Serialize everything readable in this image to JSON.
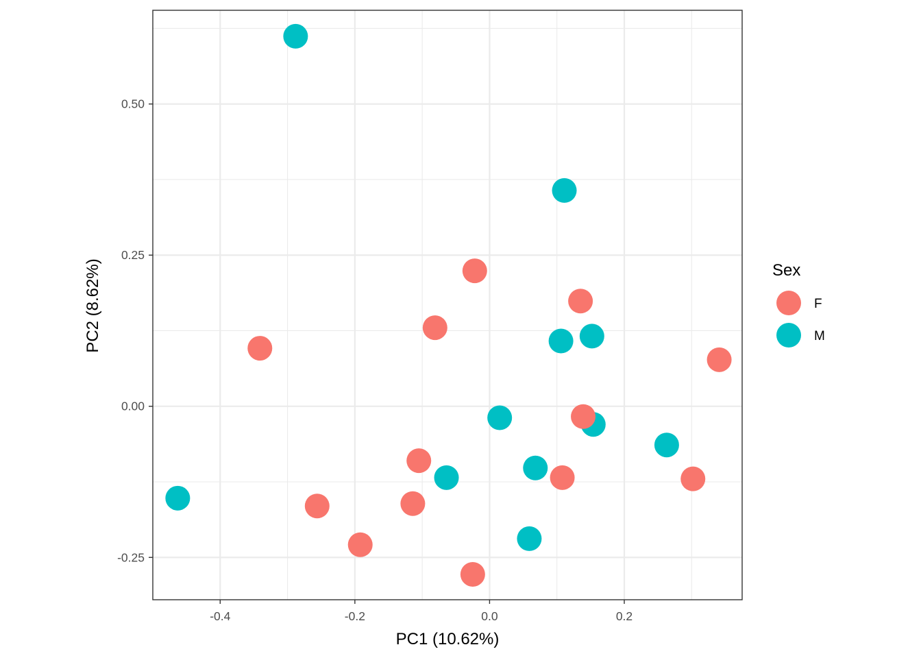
{
  "chart_data": {
    "type": "scatter",
    "xlabel": "PC1 (10.62%)",
    "ylabel": "PC2 (8.62%)",
    "xlim": [
      -0.5,
      0.375
    ],
    "ylim": [
      -0.32,
      0.655
    ],
    "x_ticks": [
      -0.4,
      -0.2,
      0.0,
      0.2
    ],
    "x_tick_labels": [
      "-0.4",
      "-0.2",
      "0.0",
      "0.2"
    ],
    "y_ticks": [
      -0.25,
      0.0,
      0.25,
      0.5
    ],
    "y_tick_labels": [
      "-0.25",
      "0.00",
      "0.25",
      "0.50"
    ],
    "grid": true,
    "legend": {
      "title": "Sex",
      "placement": "right",
      "entries": [
        {
          "label": "F",
          "color": "#F8766D"
        },
        {
          "label": "M",
          "color": "#00BFC4"
        }
      ]
    },
    "series": [
      {
        "name": "M",
        "color": "#00BFC4",
        "x": [
          -0.288,
          0.111,
          0.106,
          0.152,
          0.015,
          0.154,
          0.263,
          -0.064,
          0.068,
          -0.463,
          0.059
        ],
        "y": [
          0.612,
          0.357,
          0.108,
          0.116,
          -0.019,
          -0.03,
          -0.064,
          -0.118,
          -0.102,
          -0.152,
          -0.219
        ]
      },
      {
        "name": "F",
        "color": "#F8766D",
        "x": [
          -0.022,
          0.135,
          -0.081,
          -0.341,
          0.341,
          0.139,
          -0.105,
          0.108,
          0.302,
          -0.114,
          -0.256,
          -0.192,
          -0.025
        ],
        "y": [
          0.224,
          0.174,
          0.13,
          0.096,
          0.077,
          -0.017,
          -0.09,
          -0.118,
          -0.12,
          -0.161,
          -0.165,
          -0.229,
          -0.278
        ]
      }
    ]
  }
}
